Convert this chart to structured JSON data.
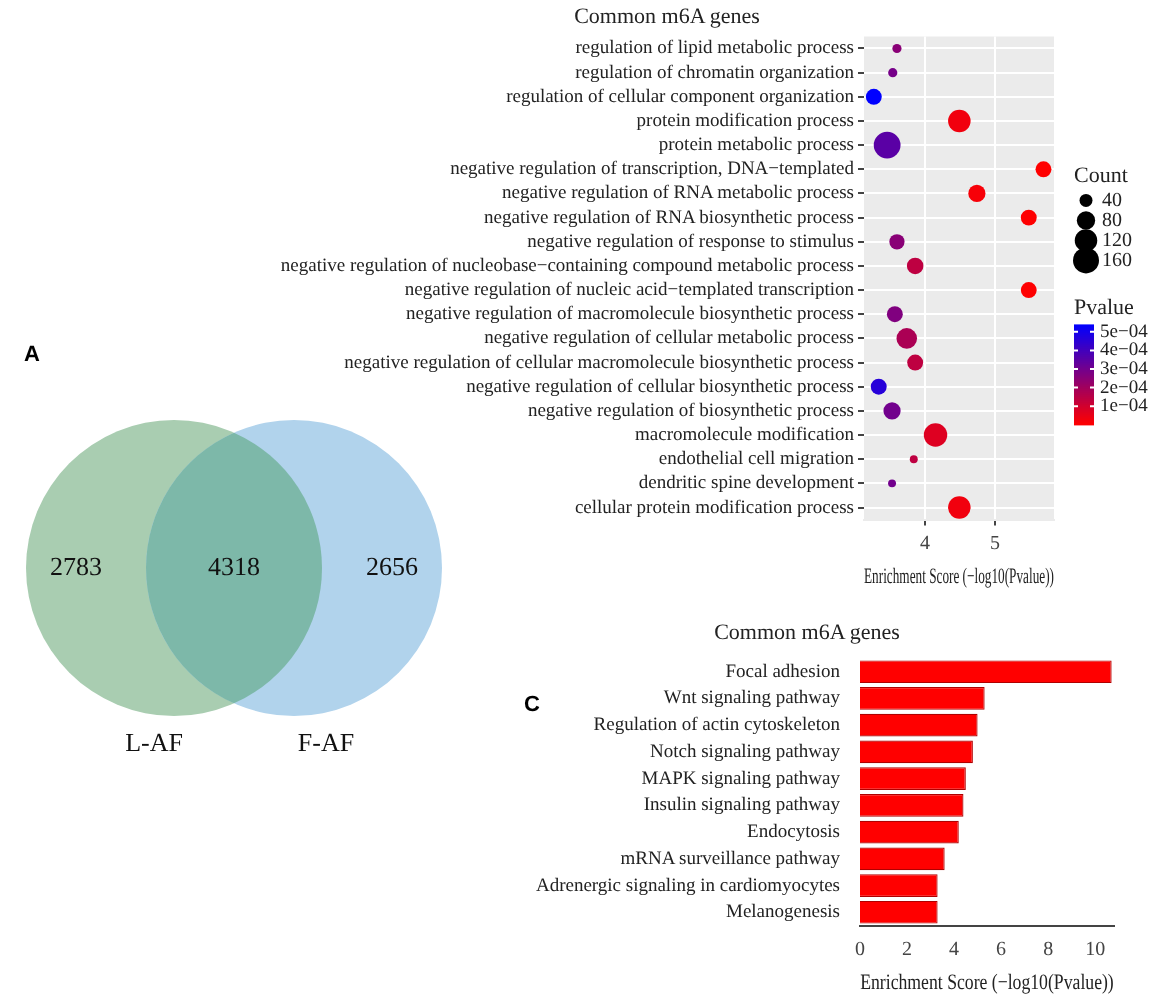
{
  "chart_data": [
    {
      "type": "bubble",
      "title": "Common m6A genes",
      "xlabel": "Enrichment Score (−log10(Pvalue))",
      "orientation": "horizontal",
      "categories": [
        "regulation of lipid metabolic process",
        "regulation of chromatin organization",
        "regulation of cellular component organization",
        "protein modification process",
        "protein metabolic process",
        "negative regulation of transcription, DNA−templated",
        "negative regulation of RNA metabolic process",
        "negative regulation of RNA biosynthetic process",
        "negative regulation of response to stimulus",
        "negative regulation of nucleobase−containing compound metabolic process",
        "negative regulation of nucleic acid−templated transcription",
        "negative regulation of macromolecule biosynthetic process",
        "negative regulation of cellular metabolic process",
        "negative regulation of cellular macromolecule biosynthetic process",
        "negative regulation of cellular biosynthetic process",
        "negative regulation of biosynthetic process",
        "macromolecule modification",
        "endothelial cell migration",
        "dendritic spine development",
        "cellular protein modification process"
      ],
      "values": [
        3.6,
        3.54,
        3.27,
        4.49,
        3.46,
        5.69,
        4.74,
        5.48,
        3.6,
        3.86,
        5.48,
        3.57,
        3.74,
        3.86,
        3.34,
        3.53,
        4.15,
        3.84,
        3.53,
        4.49
      ],
      "sizes": [
        20,
        20,
        60,
        120,
        170,
        60,
        70,
        60,
        55,
        65,
        60,
        60,
        100,
        60,
        60,
        70,
        130,
        15,
        15,
        120
      ],
      "size_legend": [
        40,
        80,
        120,
        160
      ],
      "legend_title": "Count",
      "cvalues": [
        0.00025,
        0.00029,
        0.00054,
        3.2e-05,
        0.00035,
        2e-06,
        1.8e-05,
        3.3e-06,
        0.00025,
        0.00014,
        3.3e-06,
        0.00027,
        0.00018,
        0.00014,
        0.00046,
        0.0003,
        7.1e-05,
        0.00014,
        0.0003,
        3.2e-05
      ],
      "clabel": "Pvalue",
      "clim": [
        2e-06,
        0.00054
      ],
      "cticks": [
        {
          "value": 0.0001,
          "label": "1e−04"
        },
        {
          "value": 0.0002,
          "label": "2e−04"
        },
        {
          "value": 0.0003,
          "label": "3e−04"
        },
        {
          "value": 0.0004,
          "label": "4e−04"
        },
        {
          "value": 0.0005,
          "label": "5e−04"
        }
      ],
      "xlim": [
        3.13,
        5.84
      ],
      "xticks": [
        4,
        5
      ],
      "grid": true
    },
    {
      "type": "other",
      "annotations": [
        "A"
      ],
      "categories": [
        "L-AF",
        null,
        "F-AF"
      ],
      "values": [
        2783,
        4318,
        2656
      ],
      "data_labels": true,
      "colors": [
        "#a9cdb1",
        "#7db8a9",
        "#b1d3ec"
      ]
    },
    {
      "type": "bar",
      "orientation": "horizontal",
      "title": "Common m6A genes",
      "xlabel": "Enrichment Score (−log10(Pvalue))",
      "annotations": [
        "C"
      ],
      "categories": [
        "Focal adhesion",
        "Wnt signaling pathway",
        "Regulation of actin cytoskeleton",
        "Notch signaling pathway",
        "MAPK signaling pathway",
        "Insulin signaling pathway",
        "Endocytosis",
        "mRNA surveillance pathway",
        "Adrenergic signaling in cardiomyocytes",
        "Melanogenesis"
      ],
      "values": [
        10.7,
        5.3,
        5.0,
        4.8,
        4.5,
        4.4,
        4.2,
        3.6,
        3.3,
        3.3
      ],
      "color": "#ff0000",
      "xlim": [
        0,
        10.8
      ],
      "xticks": [
        0,
        2,
        4,
        6,
        8,
        10
      ],
      "grid": false,
      "legend": false
    }
  ]
}
